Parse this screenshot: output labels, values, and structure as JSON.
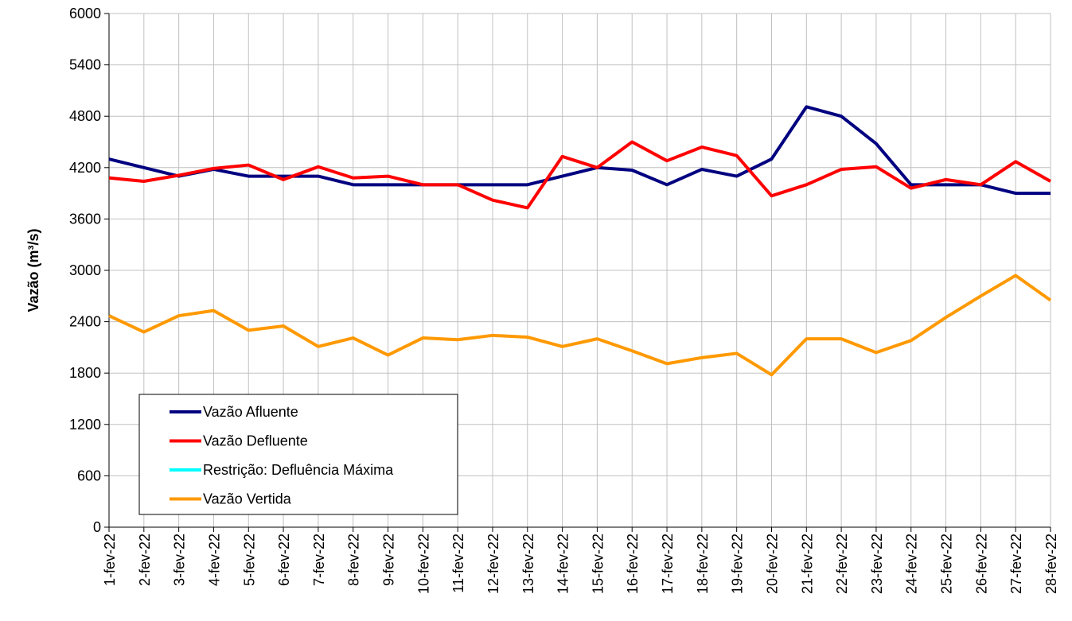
{
  "chart_data": {
    "type": "line",
    "ylabel": "Vazão (m³/s)",
    "categories": [
      "1-fev-22",
      "2-fev-22",
      "3-fev-22",
      "4-fev-22",
      "5-fev-22",
      "6-fev-22",
      "7-fev-22",
      "8-fev-22",
      "9-fev-22",
      "10-fev-22",
      "11-fev-22",
      "12-fev-22",
      "13-fev-22",
      "14-fev-22",
      "15-fev-22",
      "16-fev-22",
      "17-fev-22",
      "18-fev-22",
      "19-fev-22",
      "20-fev-22",
      "21-fev-22",
      "22-fev-22",
      "23-fev-22",
      "24-fev-22",
      "25-fev-22",
      "26-fev-22",
      "27-fev-22",
      "28-fev-22"
    ],
    "series": [
      {
        "name": "Vazão Afluente",
        "color": "#000080",
        "values": [
          4300,
          4200,
          4100,
          4180,
          4100,
          4100,
          4100,
          4000,
          4000,
          4000,
          4000,
          4000,
          4000,
          4100,
          4200,
          4170,
          4000,
          4180,
          4100,
          4300,
          4910,
          4800,
          4480,
          4000,
          4000,
          4000,
          3900,
          3900
        ]
      },
      {
        "name": "Vazão Defluente",
        "color": "#ff0000",
        "values": [
          4080,
          4040,
          4110,
          4190,
          4230,
          4060,
          4210,
          4080,
          4100,
          4000,
          4000,
          3820,
          3730,
          4330,
          4200,
          4500,
          4280,
          4440,
          4340,
          3870,
          4000,
          4180,
          4210,
          3960,
          4060,
          4000,
          4270,
          4040
        ]
      },
      {
        "name": "Restrição: Defluência Máxima",
        "color": "#00ffff",
        "values": [
          null,
          null,
          null,
          null,
          null,
          null,
          null,
          null,
          null,
          null,
          null,
          null,
          null,
          null,
          null,
          null,
          null,
          null,
          null,
          null,
          null,
          null,
          null,
          null,
          null,
          null,
          null,
          null
        ]
      },
      {
        "name": "Vazão Vertida",
        "color": "#ff9900",
        "values": [
          2470,
          2280,
          2470,
          2530,
          2300,
          2350,
          2110,
          2210,
          2010,
          2210,
          2190,
          2240,
          2220,
          2110,
          2200,
          2060,
          1910,
          1980,
          2030,
          1780,
          2200,
          2200,
          2040,
          2180,
          2450,
          2700,
          2940,
          2650
        ]
      }
    ],
    "ylim": [
      0,
      6000
    ],
    "yticks": [
      0,
      600,
      1200,
      1800,
      2400,
      3000,
      3600,
      4200,
      4800,
      5400,
      6000
    ],
    "grid": true,
    "legend": "lower left"
  }
}
